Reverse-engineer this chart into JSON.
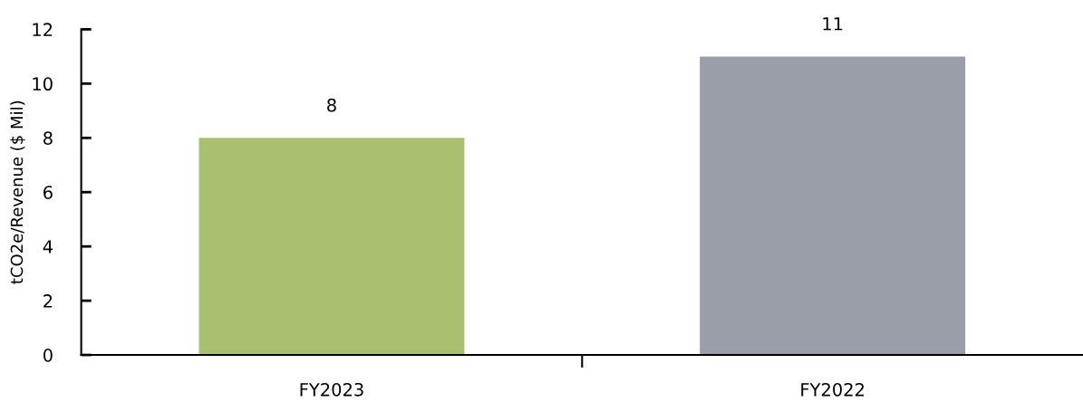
{
  "chart_data": {
    "type": "bar",
    "ylabel": "tCO2e/Revenue ($ Mil)",
    "categories": [
      "FY2023",
      "FY2022"
    ],
    "values": [
      8,
      11
    ],
    "colors": [
      "#a8c070",
      "#9a9ea8"
    ],
    "ylim": [
      0,
      12
    ],
    "yticks": [
      0,
      2,
      4,
      6,
      8,
      10,
      12
    ],
    "data_labels": true,
    "grid": false,
    "legend": false
  }
}
